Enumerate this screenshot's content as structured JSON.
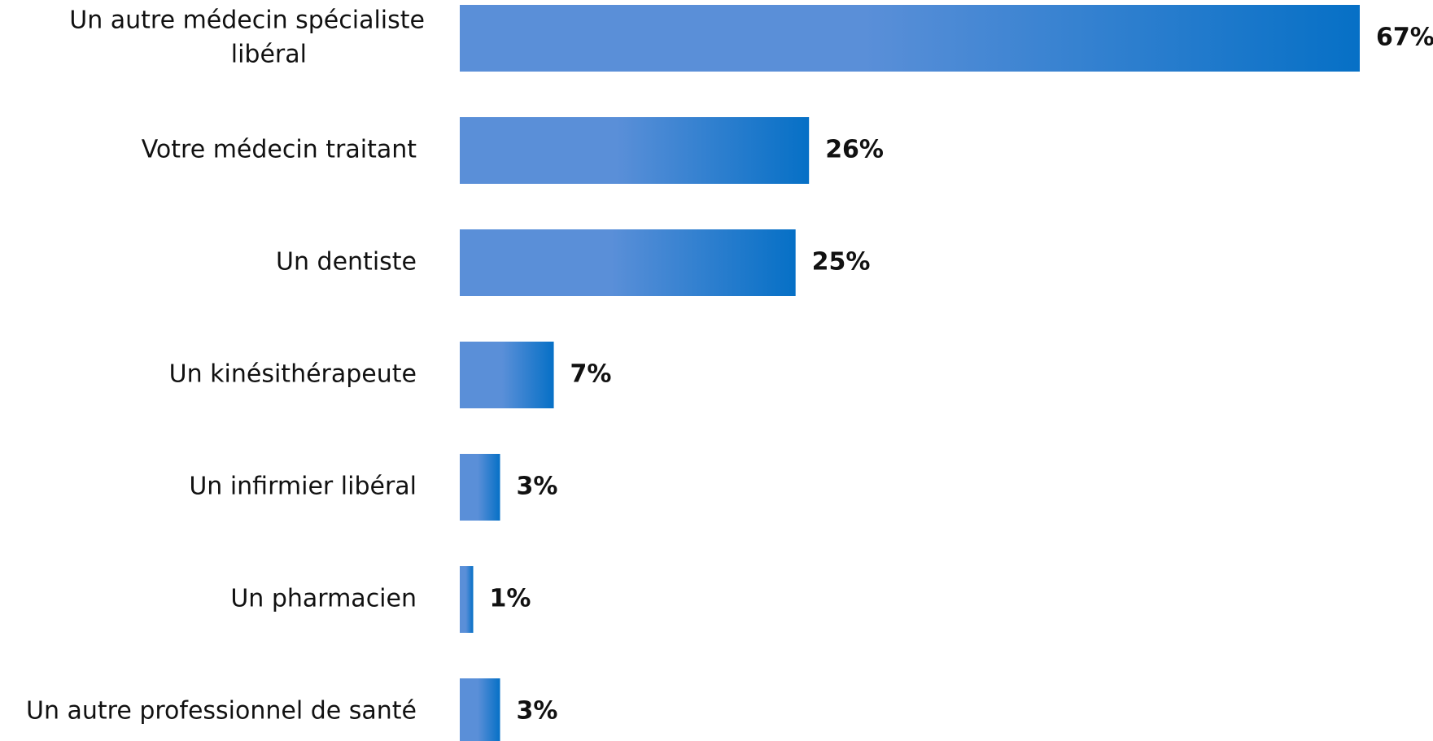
{
  "chart_data": {
    "type": "bar",
    "orientation": "horizontal",
    "categories": [
      "Un autre médecin spécialiste libéral",
      "Votre médecin traitant",
      "Un dentiste",
      "Un kinésithérapeute",
      "Un infirmier libéral",
      "Un pharmacien",
      "Un autre professionnel de santé"
    ],
    "category_lines": [
      [
        "Un autre médecin spécialiste",
        "libéral"
      ],
      [
        "Votre médecin traitant"
      ],
      [
        "Un dentiste"
      ],
      [
        "Un kinésithérapeute"
      ],
      [
        "Un infirmier libéral"
      ],
      [
        "Un pharmacien"
      ],
      [
        "Un autre professionnel de santé"
      ]
    ],
    "values": [
      67,
      26,
      25,
      7,
      3,
      1,
      3
    ],
    "value_labels": [
      "67%",
      "26%",
      "25%",
      "7%",
      "3%",
      "1%",
      "3%"
    ],
    "unit": "%",
    "title": "",
    "xlabel": "",
    "ylabel": "",
    "xlim": [
      0,
      67
    ],
    "grid": false,
    "legend": "none",
    "colors": {
      "bar_start": "#5A8FD8",
      "bar_end": "#0670C6",
      "text": "#111111"
    }
  }
}
